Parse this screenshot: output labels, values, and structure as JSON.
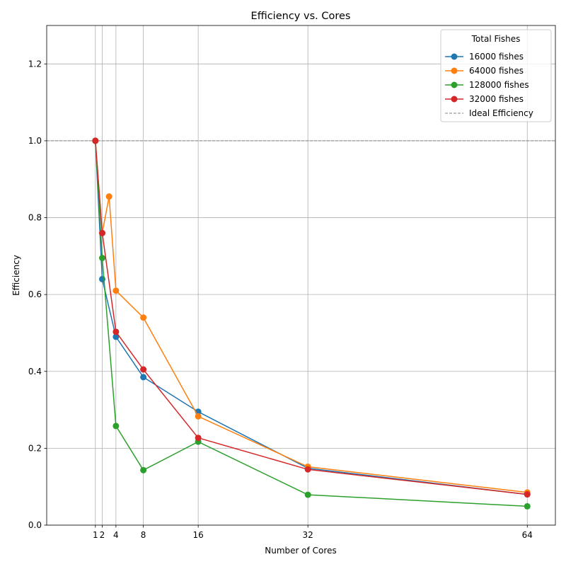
{
  "chart_data": {
    "type": "line",
    "title": "Efficiency vs. Cores",
    "xlabel": "Number of Cores",
    "ylabel": "Efficiency",
    "xlim": [
      -6.1,
      68.1
    ],
    "ylim": [
      0.0,
      1.3
    ],
    "x_ticks": [
      1,
      2,
      4,
      8,
      16,
      32,
      64
    ],
    "y_ticks": [
      0.0,
      0.2,
      0.4,
      0.6,
      0.8,
      1.0,
      1.2
    ],
    "y_tick_labels": [
      "0.0",
      "0.2",
      "0.4",
      "0.6",
      "0.8",
      "1.0",
      "1.2"
    ],
    "grid": true,
    "legend": {
      "title": "Total Fishes",
      "placement": "top-right"
    },
    "series": [
      {
        "name": "16000 fishes",
        "color": "#1f77b4",
        "x": [
          1,
          2,
          4,
          8,
          16,
          32,
          64
        ],
        "y": [
          1.0,
          0.64,
          0.49,
          0.385,
          0.295,
          0.148,
          0.08
        ]
      },
      {
        "name": "64000 fishes",
        "color": "#ff7f0e",
        "x": [
          1,
          2,
          3,
          4,
          8,
          16,
          32,
          64
        ],
        "y": [
          1.0,
          0.76,
          0.855,
          0.61,
          0.54,
          0.283,
          0.152,
          0.085
        ]
      },
      {
        "name": "128000 fishes",
        "color": "#2ca02c",
        "x": [
          1,
          2,
          4,
          8,
          16,
          32,
          64
        ],
        "y": [
          1.0,
          0.695,
          0.258,
          0.143,
          0.217,
          0.079,
          0.049
        ]
      },
      {
        "name": "32000 fishes",
        "color": "#d62728",
        "x": [
          1,
          2,
          4,
          8,
          16,
          32,
          64
        ],
        "y": [
          1.0,
          0.76,
          0.503,
          0.405,
          0.227,
          0.145,
          0.08
        ]
      }
    ],
    "reference_line": {
      "name": "Ideal Efficiency",
      "y": 1.0,
      "color": "#808080"
    }
  }
}
